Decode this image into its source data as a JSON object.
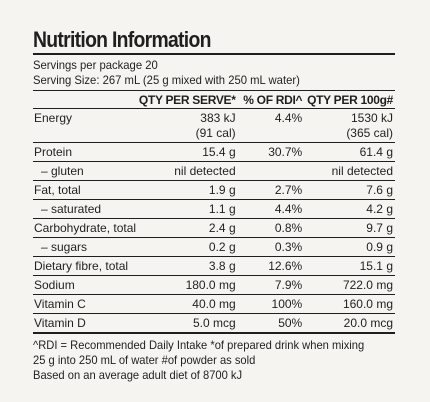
{
  "title": "Nutrition Information",
  "servings_per_package": "Servings per package 20",
  "serving_size": "Serving Size: 267 mL (25 g mixed with 250 mL water)",
  "columns": {
    "nutrient": "",
    "per_serve": "QTY PER SERVE*",
    "rdi": "% OF RDI^",
    "per_100g": "QTY PER 100g#"
  },
  "rows": [
    {
      "name": "Energy",
      "per_serve": "383 kJ",
      "per_serve_2": "(91 cal)",
      "rdi": "4.4%",
      "per_100g": "1530 kJ",
      "per_100g_2": "(365 cal)"
    },
    {
      "name": "Protein",
      "per_serve": "15.4 g",
      "per_serve_2": "",
      "rdi": "30.7%",
      "per_100g": "61.4 g",
      "per_100g_2": ""
    },
    {
      "name": "– gluten",
      "per_serve": "nil detected",
      "per_serve_2": "",
      "rdi": "",
      "per_100g": "nil detected",
      "per_100g_2": ""
    },
    {
      "name": "Fat, total",
      "per_serve": "1.9 g",
      "per_serve_2": "",
      "rdi": "2.7%",
      "per_100g": "7.6 g",
      "per_100g_2": ""
    },
    {
      "name": "– saturated",
      "per_serve": "1.1 g",
      "per_serve_2": "",
      "rdi": "4.4%",
      "per_100g": "4.2 g",
      "per_100g_2": ""
    },
    {
      "name": "Carbohydrate, total",
      "per_serve": "2.4 g",
      "per_serve_2": "",
      "rdi": "0.8%",
      "per_100g": "9.7 g",
      "per_100g_2": ""
    },
    {
      "name": "– sugars",
      "per_serve": "0.2 g",
      "per_serve_2": "",
      "rdi": "0.3%",
      "per_100g": "0.9 g",
      "per_100g_2": ""
    },
    {
      "name": "Dietary fibre, total",
      "per_serve": "3.8 g",
      "per_serve_2": "",
      "rdi": "12.6%",
      "per_100g": "15.1 g",
      "per_100g_2": ""
    },
    {
      "name": "Sodium",
      "per_serve": "180.0 mg",
      "per_serve_2": "",
      "rdi": "7.9%",
      "per_100g": "722.0 mg",
      "per_100g_2": ""
    },
    {
      "name": "Vitamin C",
      "per_serve": "40.0 mg",
      "per_serve_2": "",
      "rdi": "100%",
      "per_100g": "160.0 mg",
      "per_100g_2": ""
    },
    {
      "name": "Vitamin D",
      "per_serve": "5.0 mcg",
      "per_serve_2": "",
      "rdi": "50%",
      "per_100g": "20.0 mcg",
      "per_100g_2": ""
    }
  ],
  "footnotes": [
    "^RDI = Recommended Daily Intake *of prepared drink when mixing",
    "25 g into 250 mL of water #of powder as sold",
    "Based on an average adult diet of 8700 kJ"
  ]
}
